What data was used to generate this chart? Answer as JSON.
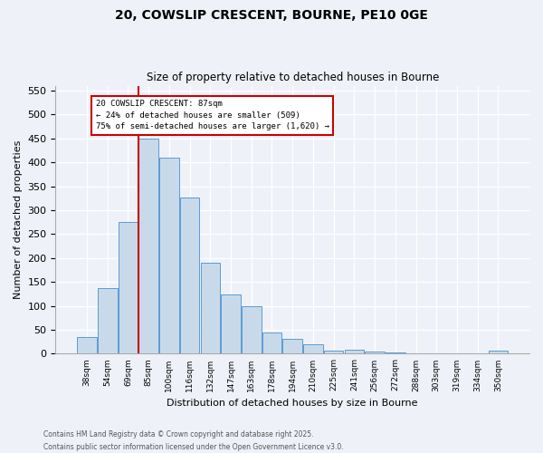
{
  "title1": "20, COWSLIP CRESCENT, BOURNE, PE10 0GE",
  "title2": "Size of property relative to detached houses in Bourne",
  "xlabel": "Distribution of detached houses by size in Bourne",
  "ylabel": "Number of detached properties",
  "categories": [
    "38sqm",
    "54sqm",
    "69sqm",
    "85sqm",
    "100sqm",
    "116sqm",
    "132sqm",
    "147sqm",
    "163sqm",
    "178sqm",
    "194sqm",
    "210sqm",
    "225sqm",
    "241sqm",
    "256sqm",
    "272sqm",
    "288sqm",
    "303sqm",
    "319sqm",
    "334sqm",
    "350sqm"
  ],
  "values": [
    35,
    137,
    275,
    450,
    410,
    327,
    191,
    124,
    100,
    45,
    31,
    19,
    7,
    8,
    5,
    3,
    0,
    0,
    0,
    0,
    6
  ],
  "bar_color": "#c8daea",
  "bar_edge_color": "#5b9bd5",
  "vline_index": 3,
  "vline_color": "#cc0000",
  "annotation_text": "20 COWSLIP CRESCENT: 87sqm\n← 24% of detached houses are smaller (509)\n75% of semi-detached houses are larger (1,620) →",
  "annotation_box_color": "#cc0000",
  "annotation_text_color": "#000000",
  "ylim": [
    0,
    560
  ],
  "yticks": [
    0,
    50,
    100,
    150,
    200,
    250,
    300,
    350,
    400,
    450,
    500,
    550
  ],
  "footer1": "Contains HM Land Registry data © Crown copyright and database right 2025.",
  "footer2": "Contains public sector information licensed under the Open Government Licence v3.0.",
  "bg_color": "#eef2f8"
}
